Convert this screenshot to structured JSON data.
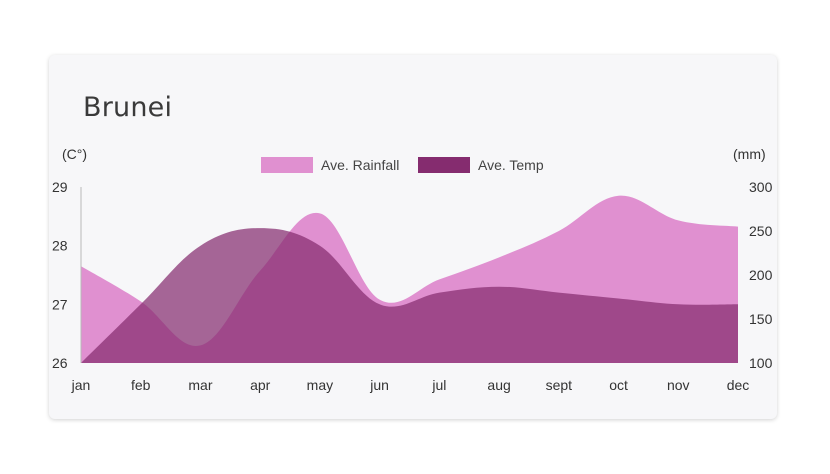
{
  "chart_data": {
    "type": "area",
    "title": "Brunei",
    "categories": [
      "jan",
      "feb",
      "mar",
      "apr",
      "may",
      "jun",
      "jul",
      "aug",
      "sept",
      "oct",
      "nov",
      "dec"
    ],
    "left_axis": {
      "unit_label": "(C°)",
      "ticks": [
        "26",
        "27",
        "28",
        "29"
      ],
      "range": [
        26,
        29
      ]
    },
    "right_axis": {
      "unit_label": "(mm)",
      "ticks": [
        "100",
        "150",
        "200",
        "250",
        "300"
      ],
      "range": [
        100,
        300
      ]
    },
    "series": [
      {
        "name": "Ave. Rainfall",
        "axis": "right",
        "color": "#e090d0",
        "values": [
          210,
          170,
          120,
          205,
          270,
          172,
          195,
          220,
          250,
          290,
          262,
          255
        ]
      },
      {
        "name": "Ave. Temp",
        "axis": "left",
        "color": "#852c6f",
        "values": [
          26.0,
          27.0,
          28.0,
          28.3,
          28.0,
          27.0,
          27.2,
          27.3,
          27.2,
          27.1,
          27.0,
          27.0
        ]
      }
    ],
    "legend": {
      "placement": "top-center"
    },
    "grid": false
  }
}
